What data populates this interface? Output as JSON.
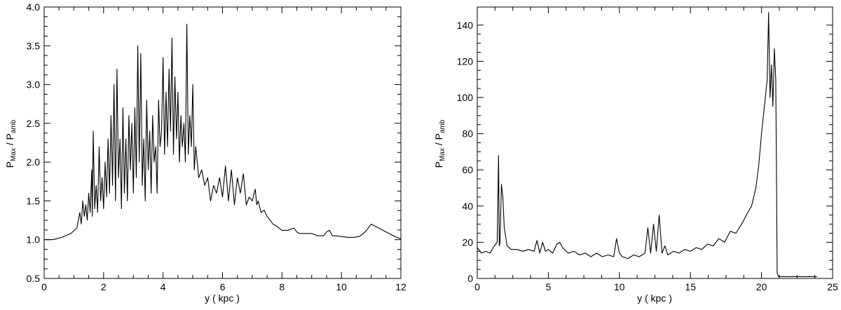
{
  "chart_data": [
    {
      "type": "line",
      "title": "",
      "xlabel": "y ( kpc )",
      "ylabel_main": "P",
      "ylabel_sub1": "Max",
      "ylabel_sep": " / P",
      "ylabel_sub2": "amb",
      "xlim": [
        0,
        12
      ],
      "ylim": [
        0.5,
        4.0
      ],
      "x_ticks": [
        0,
        2,
        4,
        6,
        8,
        10,
        12
      ],
      "x_tick_labels": [
        "0",
        "2",
        "4",
        "6",
        "8",
        "10",
        "12"
      ],
      "y_ticks": [
        0.5,
        1.0,
        1.5,
        2.0,
        2.5,
        3.0,
        3.5,
        4.0
      ],
      "y_tick_labels": [
        "0.5",
        "1.0",
        "1.5",
        "2.0",
        "2.5",
        "3.0",
        "3.5",
        "4.0"
      ],
      "grid": false,
      "series": [
        {
          "color": "#000000",
          "x": [
            0.0,
            0.3,
            0.6,
            0.9,
            1.1,
            1.2,
            1.25,
            1.3,
            1.35,
            1.4,
            1.45,
            1.5,
            1.55,
            1.6,
            1.62,
            1.65,
            1.7,
            1.75,
            1.8,
            1.85,
            1.9,
            1.95,
            2.0,
            2.05,
            2.1,
            2.15,
            2.2,
            2.25,
            2.3,
            2.35,
            2.4,
            2.45,
            2.5,
            2.55,
            2.6,
            2.65,
            2.7,
            2.75,
            2.8,
            2.85,
            2.9,
            2.95,
            3.0,
            3.05,
            3.1,
            3.15,
            3.2,
            3.25,
            3.3,
            3.35,
            3.4,
            3.45,
            3.5,
            3.55,
            3.6,
            3.65,
            3.7,
            3.75,
            3.8,
            3.85,
            3.9,
            3.95,
            4.0,
            4.05,
            4.1,
            4.15,
            4.2,
            4.25,
            4.3,
            4.35,
            4.4,
            4.45,
            4.5,
            4.55,
            4.6,
            4.65,
            4.7,
            4.75,
            4.8,
            4.85,
            4.9,
            4.95,
            5.0,
            5.05,
            5.1,
            5.2,
            5.3,
            5.4,
            5.5,
            5.6,
            5.7,
            5.8,
            5.9,
            6.0,
            6.1,
            6.2,
            6.3,
            6.4,
            6.5,
            6.6,
            6.7,
            6.8,
            6.9,
            7.0,
            7.1,
            7.15,
            7.2,
            7.3,
            7.4,
            7.5,
            7.6,
            7.7,
            7.8,
            7.9,
            8.0,
            8.2,
            8.4,
            8.5,
            8.6,
            8.8,
            9.0,
            9.2,
            9.4,
            9.5,
            9.6,
            9.7,
            9.8,
            10.0,
            10.2,
            10.4,
            10.6,
            10.8,
            11.0,
            11.2,
            11.4,
            11.6,
            11.8,
            12.0
          ],
          "y": [
            1.0,
            1.0,
            1.03,
            1.08,
            1.15,
            1.35,
            1.2,
            1.5,
            1.3,
            1.45,
            1.25,
            1.6,
            1.35,
            1.9,
            1.3,
            2.4,
            1.4,
            1.7,
            1.35,
            2.2,
            1.5,
            1.8,
            1.4,
            2.0,
            1.55,
            2.3,
            1.6,
            2.6,
            1.7,
            3.0,
            1.5,
            3.2,
            1.8,
            2.3,
            1.4,
            2.7,
            1.6,
            2.3,
            1.5,
            2.6,
            1.9,
            2.5,
            1.6,
            2.7,
            1.8,
            3.5,
            2.0,
            3.4,
            1.7,
            2.3,
            1.5,
            2.8,
            1.9,
            2.4,
            1.6,
            2.6,
            2.0,
            2.2,
            1.6,
            2.8,
            2.2,
            2.4,
            3.35,
            2.1,
            2.9,
            2.2,
            3.2,
            2.4,
            3.6,
            2.1,
            3.1,
            2.3,
            2.9,
            2.0,
            2.6,
            2.2,
            2.5,
            2.0,
            3.78,
            2.1,
            2.6,
            2.2,
            3.0,
            1.9,
            2.2,
            1.8,
            1.9,
            1.7,
            1.8,
            1.5,
            1.7,
            1.6,
            1.8,
            1.55,
            1.95,
            1.5,
            1.9,
            1.45,
            1.8,
            1.6,
            1.85,
            1.45,
            1.55,
            1.5,
            1.65,
            1.45,
            1.5,
            1.35,
            1.38,
            1.3,
            1.25,
            1.2,
            1.18,
            1.15,
            1.12,
            1.12,
            1.15,
            1.1,
            1.08,
            1.08,
            1.08,
            1.05,
            1.05,
            1.1,
            1.12,
            1.05,
            1.05,
            1.04,
            1.03,
            1.03,
            1.04,
            1.1,
            1.2,
            1.16,
            1.12,
            1.08,
            1.04,
            1.01
          ]
        }
      ]
    },
    {
      "type": "line",
      "title": "",
      "xlabel": "y ( kpc )",
      "ylabel_main": "P",
      "ylabel_sub1": "Max",
      "ylabel_sep": " / P",
      "ylabel_sub2": "amb",
      "xlim": [
        0,
        25
      ],
      "ylim": [
        0,
        150
      ],
      "x_ticks": [
        0,
        5,
        10,
        15,
        20,
        25
      ],
      "x_tick_labels": [
        "0",
        "5",
        "10",
        "15",
        "20",
        "25"
      ],
      "y_ticks": [
        0,
        20,
        40,
        60,
        80,
        100,
        120,
        140
      ],
      "y_tick_labels": [
        "0",
        "20",
        "40",
        "60",
        "80",
        "100",
        "120",
        "140"
      ],
      "grid": false,
      "series": [
        {
          "color": "#000000",
          "x": [
            0.0,
            0.3,
            0.6,
            0.9,
            1.2,
            1.4,
            1.5,
            1.55,
            1.6,
            1.7,
            1.8,
            1.9,
            2.1,
            2.4,
            2.8,
            3.2,
            3.6,
            4.0,
            4.2,
            4.4,
            4.6,
            4.8,
            5.0,
            5.3,
            5.6,
            5.8,
            6.0,
            6.4,
            6.8,
            7.2,
            7.6,
            8.0,
            8.4,
            8.8,
            9.2,
            9.6,
            9.8,
            10.0,
            10.2,
            10.6,
            11.0,
            11.4,
            11.8,
            12.0,
            12.2,
            12.4,
            12.6,
            12.8,
            13.0,
            13.2,
            13.4,
            13.8,
            14.2,
            14.6,
            15.0,
            15.4,
            15.8,
            16.2,
            16.6,
            17.0,
            17.4,
            17.8,
            18.2,
            18.6,
            19.0,
            19.3,
            19.6,
            19.8,
            20.0,
            20.2,
            20.4,
            20.5,
            20.6,
            20.7,
            20.8,
            20.9,
            21.0,
            21.05,
            21.1,
            21.2,
            23.9
          ],
          "y": [
            17,
            14,
            15,
            14,
            18,
            20,
            68,
            18,
            20,
            52,
            45,
            28,
            18,
            16,
            16,
            15,
            16,
            15,
            21,
            14,
            20,
            15,
            16,
            14,
            19,
            20,
            17,
            14,
            15,
            13,
            14,
            12,
            14,
            12,
            13,
            12,
            22,
            14,
            12,
            11,
            13,
            12,
            14,
            28,
            14,
            30,
            15,
            35,
            14,
            18,
            13,
            15,
            14,
            16,
            15,
            17,
            16,
            19,
            18,
            22,
            20,
            26,
            25,
            30,
            36,
            40,
            50,
            62,
            80,
            95,
            110,
            147,
            100,
            118,
            95,
            127,
            110,
            60,
            3,
            1,
            1
          ]
        }
      ]
    }
  ]
}
